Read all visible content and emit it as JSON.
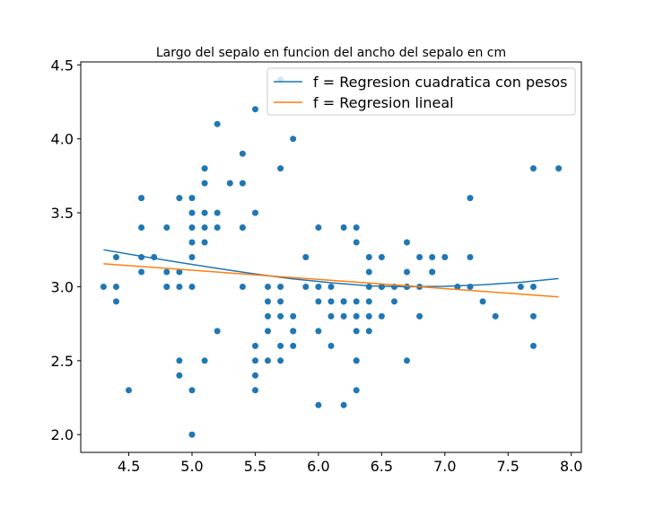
{
  "chart_data": {
    "type": "scatter",
    "title": "Largo del sepalo en funcion del ancho del sepalo en cm",
    "xlabel": "",
    "ylabel": "",
    "xlim": [
      4.12,
      8.08
    ],
    "ylim": [
      1.88,
      4.52
    ],
    "xticks": [
      "4.5",
      "5.0",
      "5.5",
      "6.0",
      "6.5",
      "7.0",
      "7.5",
      "8.0"
    ],
    "xtick_values": [
      4.5,
      5.0,
      5.5,
      6.0,
      6.5,
      7.0,
      7.5,
      8.0
    ],
    "yticks": [
      "2.0",
      "2.5",
      "3.0",
      "3.5",
      "4.0",
      "4.5"
    ],
    "ytick_values": [
      2.0,
      2.5,
      3.0,
      3.5,
      4.0,
      4.5
    ],
    "grid": false,
    "legend_position": "top-right",
    "points": {
      "color": "#1f77b4",
      "x": [
        4.3,
        4.4,
        4.4,
        4.4,
        4.5,
        4.6,
        4.6,
        4.6,
        4.6,
        4.7,
        4.8,
        4.8,
        4.8,
        4.8,
        4.9,
        4.9,
        4.9,
        4.9,
        4.9,
        5.0,
        5.0,
        5.0,
        5.0,
        5.0,
        5.0,
        5.0,
        5.0,
        5.1,
        5.1,
        5.1,
        5.1,
        5.1,
        5.1,
        5.2,
        5.2,
        5.2,
        5.2,
        5.3,
        5.4,
        5.4,
        5.4,
        5.4,
        5.4,
        5.5,
        5.5,
        5.5,
        5.5,
        5.5,
        5.5,
        5.6,
        5.6,
        5.6,
        5.6,
        5.6,
        5.7,
        5.7,
        5.7,
        5.7,
        5.7,
        5.7,
        5.7,
        5.8,
        5.8,
        5.8,
        5.8,
        5.8,
        5.9,
        5.9,
        6.0,
        6.0,
        6.0,
        6.0,
        6.0,
        6.1,
        6.1,
        6.1,
        6.1,
        6.2,
        6.2,
        6.2,
        6.2,
        6.2,
        6.3,
        6.3,
        6.3,
        6.3,
        6.3,
        6.3,
        6.3,
        6.3,
        6.4,
        6.4,
        6.4,
        6.4,
        6.4,
        6.4,
        6.5,
        6.5,
        6.5,
        6.5,
        6.6,
        6.6,
        6.7,
        6.7,
        6.7,
        6.7,
        6.7,
        6.8,
        6.8,
        6.8,
        6.9,
        6.9,
        6.9,
        7.0,
        7.1,
        7.2,
        7.2,
        7.2,
        7.3,
        7.4,
        7.6,
        7.7,
        7.7,
        7.7,
        7.7,
        7.9
      ],
      "y": [
        3.0,
        2.9,
        3.0,
        3.2,
        2.3,
        3.1,
        3.2,
        3.4,
        3.6,
        3.2,
        3.0,
        3.1,
        3.4,
        3.0,
        3.0,
        3.1,
        2.4,
        2.5,
        3.6,
        3.0,
        3.3,
        3.4,
        3.5,
        3.6,
        3.2,
        2.3,
        2.0,
        3.3,
        3.5,
        3.7,
        3.8,
        2.5,
        3.4,
        3.4,
        3.5,
        4.1,
        2.7,
        3.7,
        3.0,
        3.4,
        3.9,
        3.7,
        3.4,
        4.2,
        3.5,
        2.3,
        2.4,
        2.5,
        2.6,
        2.5,
        2.7,
        2.8,
        2.9,
        3.0,
        2.5,
        2.6,
        2.8,
        2.9,
        3.0,
        3.8,
        4.4,
        2.6,
        2.7,
        2.8,
        4.0,
        2.7,
        3.0,
        3.2,
        2.2,
        2.7,
        2.9,
        3.0,
        3.4,
        2.6,
        2.8,
        2.9,
        3.0,
        2.2,
        2.8,
        2.9,
        3.4,
        2.9,
        2.3,
        2.5,
        2.7,
        2.8,
        2.9,
        3.3,
        3.4,
        2.5,
        2.7,
        2.8,
        2.9,
        3.1,
        3.2,
        3.0,
        2.8,
        3.0,
        3.2,
        3.0,
        2.9,
        3.0,
        2.5,
        3.0,
        3.1,
        3.3,
        3.0,
        2.8,
        3.0,
        3.2,
        3.1,
        3.2,
        3.1,
        3.2,
        3.0,
        3.0,
        3.2,
        3.6,
        2.9,
        2.8,
        3.0,
        2.6,
        2.8,
        3.0,
        3.8,
        3.8
      ]
    },
    "series": [
      {
        "name": "f = Regresion cuadratica con pesos",
        "type": "line",
        "color": "#1f77b4",
        "x": [
          4.3,
          4.6,
          4.9,
          5.2,
          5.5,
          5.8,
          6.1,
          6.4,
          6.7,
          7.0,
          7.3,
          7.6,
          7.9
        ],
        "y": [
          3.25,
          3.206,
          3.164,
          3.124,
          3.086,
          3.053,
          3.027,
          3.006,
          3.0,
          3.003,
          3.013,
          3.03,
          3.055
        ]
      },
      {
        "name": "f = Regresion lineal",
        "type": "line",
        "color": "#ff7f0e",
        "x": [
          4.3,
          7.9
        ],
        "y": [
          3.155,
          2.932
        ]
      }
    ]
  }
}
